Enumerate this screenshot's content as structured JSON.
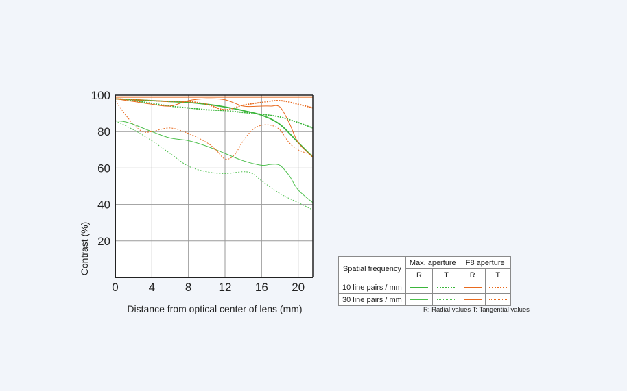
{
  "chart_data": {
    "type": "line",
    "xlabel": "Distance from optical center of lens (mm)",
    "ylabel": "Contrast (%)",
    "xlim": [
      0,
      21.6
    ],
    "ylim": [
      0,
      100
    ],
    "x_ticks": [
      "0",
      "4",
      "8",
      "12",
      "16",
      "20"
    ],
    "y_ticks": [
      "20",
      "40",
      "60",
      "80",
      "100"
    ],
    "grid": true,
    "series": [
      {
        "name": "Max. aperture 10 line pairs / mm R",
        "color": "#3bb53b",
        "dash": "solid",
        "width": 1.8,
        "x": [
          0,
          2,
          4,
          6,
          8,
          10,
          12,
          14,
          16,
          18,
          20,
          21.6
        ],
        "y": [
          98,
          97.5,
          97,
          96.5,
          96,
          95,
          93.5,
          91.5,
          89,
          84,
          74,
          66
        ]
      },
      {
        "name": "Max. aperture 10 line pairs / mm T",
        "color": "#3bb53b",
        "dash": "dotted",
        "width": 1.8,
        "x": [
          0,
          2,
          4,
          6,
          8,
          10,
          12,
          14,
          16,
          18,
          20,
          21.6
        ],
        "y": [
          98,
          97,
          95.5,
          94,
          93,
          92,
          91.5,
          90.5,
          89.5,
          88,
          85,
          82
        ]
      },
      {
        "name": "Max. aperture 30 line pairs / mm R",
        "color": "#4cbf4c",
        "dash": "solid",
        "width": 1,
        "x": [
          0,
          1,
          2,
          4,
          6,
          8,
          10,
          12,
          14,
          16,
          17,
          18,
          19,
          20,
          21.6
        ],
        "y": [
          86,
          85.5,
          84,
          80,
          76.5,
          75,
          72,
          68,
          64,
          61.5,
          62,
          61.5,
          56,
          48,
          41
        ]
      },
      {
        "name": "Max. aperture 30 line pairs / mm T",
        "color": "#4cbf4c",
        "dash": "dotted",
        "width": 1,
        "x": [
          0,
          2,
          4,
          6,
          8,
          10,
          12,
          14,
          15,
          16,
          18,
          20,
          21.6
        ],
        "y": [
          86,
          81,
          75,
          68,
          61,
          58,
          57,
          58,
          57,
          53,
          46,
          41,
          37
        ]
      },
      {
        "name": "F8 aperture 10 line pairs / mm R",
        "color": "#e86a1e",
        "dash": "solid",
        "width": 1.8,
        "x": [
          0,
          4,
          8,
          12,
          16,
          18,
          20,
          21.6
        ],
        "y": [
          99,
          99,
          99,
          99,
          99,
          99,
          99,
          99
        ]
      },
      {
        "name": "F8 aperture 10 line pairs / mm T",
        "color": "#e86a1e",
        "dash": "dotted",
        "width": 1.8,
        "x": [
          0,
          2,
          4,
          6,
          8,
          10,
          12,
          14,
          16,
          18,
          20,
          21.6
        ],
        "y": [
          98,
          97.5,
          97,
          96.5,
          96.5,
          95,
          92,
          94.5,
          96,
          97,
          95,
          93
        ]
      },
      {
        "name": "F8 aperture 30 line pairs / mm R",
        "color": "#e86a1e",
        "dash": "solid",
        "width": 1,
        "x": [
          0,
          2,
          4,
          6,
          8,
          10,
          12,
          14,
          16,
          17,
          18,
          19,
          20,
          21.6
        ],
        "y": [
          98,
          96.5,
          95,
          94,
          97,
          98,
          97.5,
          94,
          94,
          94,
          93.5,
          85,
          74,
          66
        ]
      },
      {
        "name": "F8 aperture 30 line pairs / mm T",
        "color": "#e86a1e",
        "dash": "dotted",
        "width": 1,
        "x": [
          0,
          1,
          2,
          3,
          4,
          6,
          8,
          10,
          11,
          12,
          13,
          14,
          15,
          16,
          17,
          18,
          19,
          20,
          21.6
        ],
        "y": [
          97,
          90,
          84,
          80,
          80,
          82,
          79,
          74,
          70,
          65,
          67,
          75,
          81,
          83.5,
          83.5,
          81,
          74,
          70,
          67
        ]
      }
    ]
  },
  "legend": {
    "header_spatial": "Spatial frequency",
    "header_max": "Max. aperture",
    "header_f8": "F8 aperture",
    "sub_r": "R",
    "sub_t": "T",
    "row_10": "10 line pairs / mm",
    "row_30": "30 line pairs / mm",
    "note": "R: Radial values  T: Tangential values"
  }
}
